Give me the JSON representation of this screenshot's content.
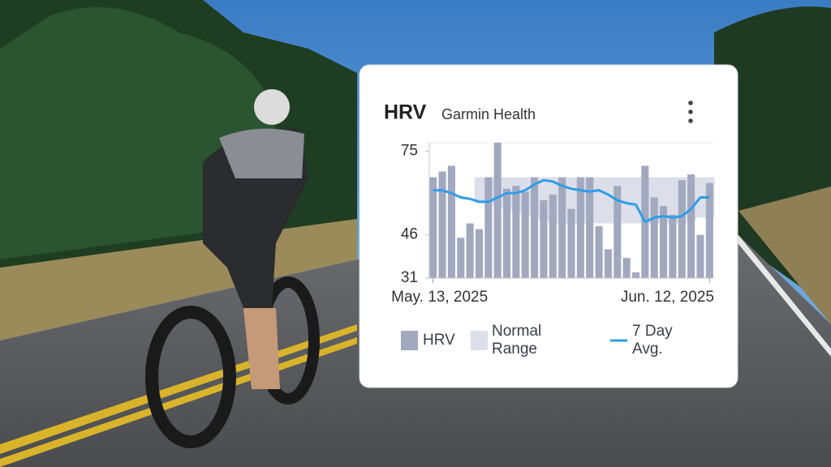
{
  "chart_data": {
    "type": "bar",
    "title": "HRV",
    "subtitle": "Garmin Health",
    "categories": [
      "May. 13, 2025",
      null,
      null,
      null,
      null,
      null,
      null,
      null,
      null,
      null,
      null,
      null,
      null,
      null,
      null,
      null,
      null,
      null,
      null,
      null,
      null,
      null,
      null,
      null,
      null,
      null,
      null,
      null,
      null,
      null,
      "Jun. 12, 2025"
    ],
    "series": [
      {
        "name": "HRV",
        "type": "bar",
        "color": "#a2a9bf",
        "values": [
          66,
          68,
          70,
          45,
          50,
          48,
          66,
          78,
          62,
          63,
          61,
          66,
          58,
          60,
          66,
          55,
          66,
          66,
          49,
          41,
          63,
          38,
          33,
          70,
          59,
          56,
          53,
          65,
          67,
          46,
          64
        ]
      },
      {
        "name": "Normal Range",
        "type": "range",
        "color": "#dcdfe9",
        "low": [
          null,
          null,
          null,
          null,
          null,
          57,
          57,
          56,
          55,
          54,
          53,
          52,
          51,
          50,
          50,
          50,
          50,
          50,
          50,
          50,
          50,
          50,
          50,
          50,
          50,
          50,
          50,
          50,
          51,
          52,
          52
        ],
        "high": [
          null,
          null,
          null,
          null,
          null,
          66,
          66,
          66,
          66,
          66,
          66,
          66,
          66,
          66,
          66,
          66,
          66,
          66,
          66,
          66,
          66,
          66,
          66,
          66,
          66,
          66,
          66,
          66,
          66,
          66,
          66
        ]
      },
      {
        "name": "7 Day Avg.",
        "type": "line",
        "color": "#2f9de8",
        "values": [
          61.5,
          61.5,
          60.5,
          59,
          58.5,
          57.5,
          57.5,
          59,
          60.5,
          60.5,
          61.5,
          63.5,
          65,
          64.5,
          63,
          62,
          61.5,
          61,
          61.5,
          60,
          58,
          57,
          56.5,
          50.5,
          52,
          52.5,
          52,
          52.5,
          55,
          59,
          59
        ]
      }
    ],
    "ylim": [
      31,
      78
    ],
    "yticks": [
      31,
      46,
      75
    ]
  }
}
